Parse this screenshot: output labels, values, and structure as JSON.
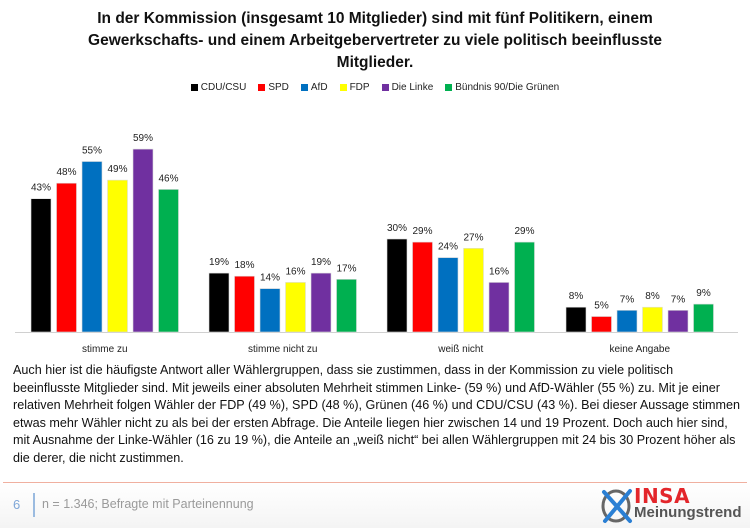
{
  "title": "In der Kommission (insgesamt 10 Mitglieder) sind mit fünf Politikern, einem Gewerkschafts- und einem Arbeitgebervertreter zu viele politisch beeinflusste Mitglieder.",
  "title_lines": [
    "In der Kommission (insgesamt 10 Mitglieder) sind mit fünf Politikern, einem",
    "Gewerkschafts- und einem Arbeitgebervertreter zu viele politisch beeinflusste",
    "Mitglieder."
  ],
  "chart_data": {
    "type": "bar",
    "title": "In der Kommission (insgesamt 10 Mitglieder) sind mit fünf Politikern, einem Gewerkschafts- und einem Arbeitgebervertreter zu viele politisch beeinflusste Mitglieder.",
    "xlabel": "",
    "ylabel": "",
    "ylim": [
      0,
      60
    ],
    "grid": false,
    "legend_position": "top-center",
    "value_suffix": "%",
    "categories": [
      "stimme zu",
      "stimme nicht zu",
      "weiß nicht",
      "keine Angabe"
    ],
    "series": [
      {
        "name": "CDU/CSU",
        "color": "#000000",
        "values": [
          43,
          19,
          30,
          8
        ]
      },
      {
        "name": "SPD",
        "color": "#ff0000",
        "values": [
          48,
          18,
          29,
          5
        ]
      },
      {
        "name": "AfD",
        "color": "#0070c0",
        "values": [
          55,
          14,
          24,
          7
        ]
      },
      {
        "name": "FDP",
        "color": "#ffff00",
        "values": [
          49,
          16,
          27,
          8
        ]
      },
      {
        "name": "Die Linke",
        "color": "#7030a0",
        "values": [
          59,
          19,
          16,
          7
        ]
      },
      {
        "name": "Bündnis 90/Die Grünen",
        "color": "#00b050",
        "values": [
          46,
          17,
          29,
          9
        ]
      }
    ]
  },
  "body_text": "Auch hier ist die häufigste Antwort aller Wählergruppen, dass sie zustimmen, dass in der Kommission zu viele politisch beeinflusste Mitglieder sind. Mit jeweils einer absoluten Mehrheit stimmen Linke- (59 %) und AfD-Wähler (55 %) zu. Mit je einer relativen Mehrheit folgen Wähler der FDP (49 %), SPD (48 %), Grünen (46 %) und CDU/CSU (43 %). Bei dieser Aussage stimmen etwas mehr Wähler nicht zu als bei der ersten Abfrage. Die Anteile liegen hier zwischen 14 und 19 Prozent. Doch auch hier sind, mit Ausnahme der Linke-Wähler (16 zu 19 %), die Anteile an „weiß nicht“ bei allen Wählergruppen mit 24 bis 30 Prozent höher als die derer, die nicht zustimmen.",
  "footer": {
    "page_number": "6",
    "footnote": "n = 1.346; Befragte mit Parteinennung",
    "logo_brand": "INSA",
    "logo_sub": "Meinungstrend"
  }
}
